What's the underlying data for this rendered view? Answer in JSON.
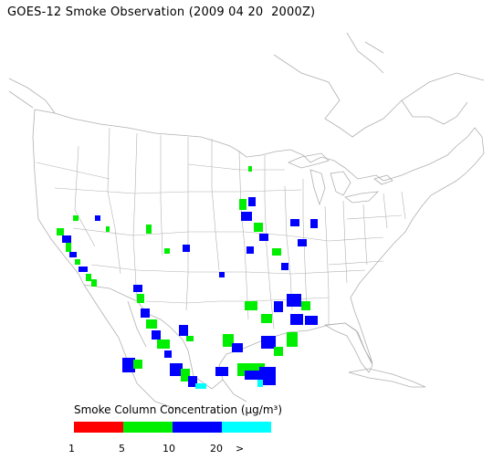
{
  "title": "GOES-12 Smoke Observation (2009 04 20  2000Z)",
  "legend": {
    "title": "Smoke Column Concentration (µg/m³)",
    "bins": [
      {
        "range": "1-5",
        "color": "#ff0000"
      },
      {
        "range": "5-10",
        "color": "#00ee00"
      },
      {
        "range": "10-20",
        "color": "#0000ff"
      },
      {
        "range": "20 >",
        "color": "#00ffff"
      }
    ],
    "ticks": [
      "1",
      "5",
      "10",
      "20",
      ">"
    ]
  },
  "colors": {
    "map_lines": "#b0b0b0",
    "background": "#ffffff"
  }
}
